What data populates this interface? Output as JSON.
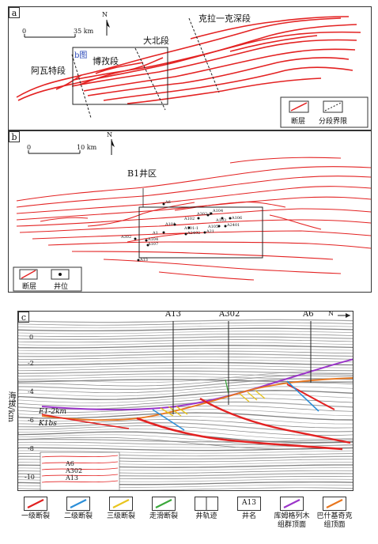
{
  "panel_a": {
    "tag": "a",
    "north": "N",
    "scale": {
      "zero": "0",
      "value": "35 km"
    },
    "segments": {
      "kela": "克拉一克深段",
      "dabei": "大北段",
      "bozi": "博孜段",
      "awate": "阿瓦特段"
    },
    "inset_label": "b图",
    "legend": {
      "fault": "断层",
      "boundary": "分段界限"
    }
  },
  "panel_b": {
    "tag": "b",
    "north": "N",
    "scale": {
      "zero": "0",
      "value": "10 km"
    },
    "area_label": "B1井区",
    "wells": [
      "A6",
      "A104",
      "A102",
      "A302-1",
      "A103",
      "A106",
      "A101",
      "A101-1",
      "A105",
      "A2401",
      "A1",
      "A2402",
      "A21",
      "A302",
      "A104",
      "A107",
      "A13"
    ],
    "legend": {
      "fault": "断层",
      "well": "井位"
    }
  },
  "panel_c": {
    "tag": "c",
    "north": "N",
    "wells": [
      "A13",
      "A302",
      "A6"
    ],
    "yaxis_label": "海拔/km",
    "yticks": [
      "0",
      "-2",
      "-4",
      "-6",
      "-8",
      "-10"
    ],
    "strat_top": "E1-2km",
    "strat_bottom": "K1bs",
    "inset_wells": [
      "A6",
      "A302",
      "A13"
    ]
  },
  "legend": [
    {
      "label": "一级断裂",
      "color": "#e02020"
    },
    {
      "label": "二级断裂",
      "color": "#2b8ed8"
    },
    {
      "label": "三级断裂",
      "color": "#e8c51e"
    },
    {
      "label": "走滑断裂",
      "color": "#3aa83a"
    },
    {
      "label": "井轨迹",
      "color": "#333333"
    },
    {
      "label": "井名",
      "text": "A13"
    },
    {
      "label": "库姆格列木组群顶面",
      "color": "#9b35c9"
    },
    {
      "label": "巴什基奇克组顶面",
      "color": "#e8761e"
    }
  ]
}
